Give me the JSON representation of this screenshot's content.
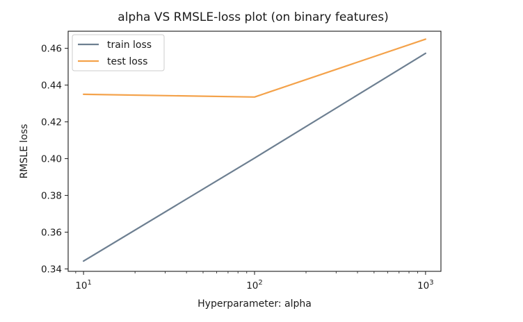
{
  "chart_data": {
    "type": "line",
    "title": "alpha VS RMSLE-loss plot (on binary features)",
    "xlabel": "Hyperparameter: alpha",
    "ylabel": "RMSLE loss",
    "xscale": "log",
    "x": [
      10,
      100,
      1000
    ],
    "xticks": [
      {
        "value": 10,
        "base": "10",
        "exp": "1"
      },
      {
        "value": 100,
        "base": "10",
        "exp": "2"
      },
      {
        "value": 1000,
        "base": "10",
        "exp": "3"
      }
    ],
    "yticks": [
      "0.34",
      "0.36",
      "0.38",
      "0.40",
      "0.42",
      "0.44",
      "0.46"
    ],
    "ylim": [
      0.3387,
      0.4693
    ],
    "grid": false,
    "legend_position": "top-left",
    "series": [
      {
        "name": "train loss",
        "color": "#6d7f91",
        "values": [
          0.3443,
          0.4003,
          0.4573
        ]
      },
      {
        "name": "test loss",
        "color": "#f4a24a",
        "values": [
          0.435,
          0.4335,
          0.465
        ]
      }
    ]
  }
}
